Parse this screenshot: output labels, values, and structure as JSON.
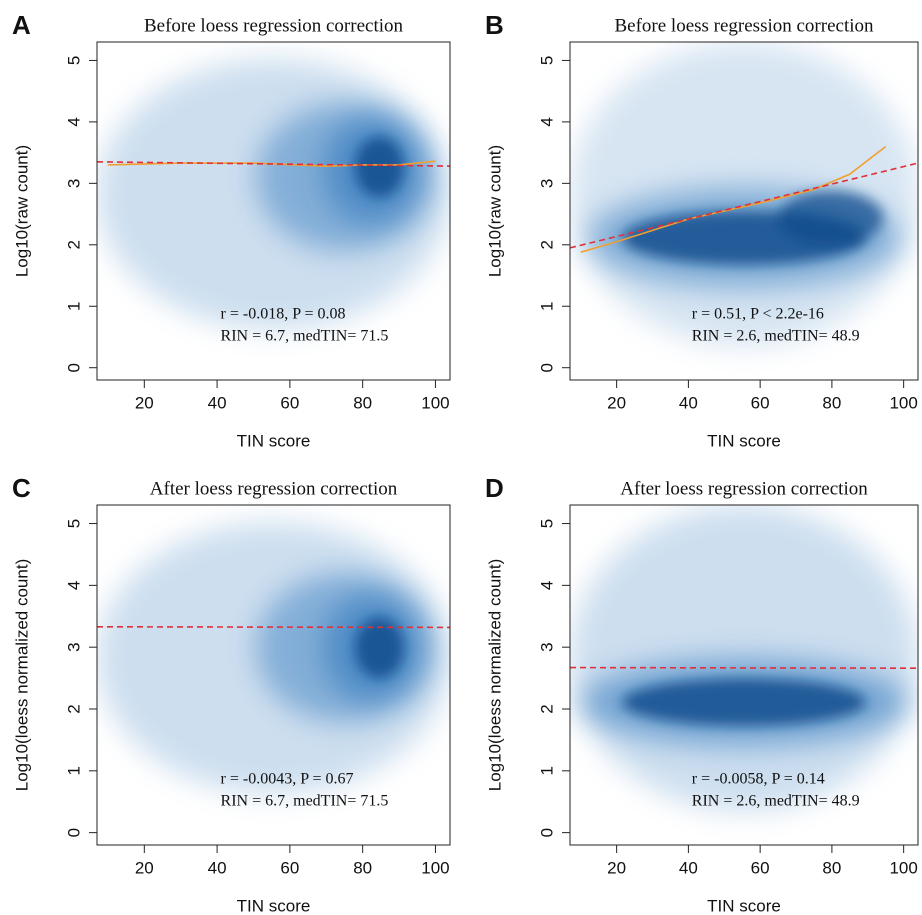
{
  "chart_data": [
    {
      "type": "smoothscatter",
      "panel": "A",
      "title": "Before loess regression correction",
      "xlabel": "TIN score",
      "ylabel": "Log10(raw count)",
      "xlim": [
        7,
        104
      ],
      "ylim": [
        -0.2,
        5.3
      ],
      "xticks": [
        20,
        40,
        60,
        80,
        100
      ],
      "yticks": [
        0,
        1,
        2,
        3,
        4,
        5
      ],
      "annotations": [
        "r = -0.018, P = 0.08",
        "RIN = 6.7, medTIN= 71.5"
      ],
      "fit": {
        "color": "#e0303a",
        "x": [
          7,
          104
        ],
        "y": [
          3.35,
          3.28
        ]
      },
      "loess": {
        "color": "#f0a030",
        "x": [
          10,
          30,
          50,
          70,
          80,
          90,
          100
        ],
        "y": [
          3.3,
          3.33,
          3.33,
          3.28,
          3.3,
          3.3,
          3.36
        ]
      }
    },
    {
      "type": "smoothscatter",
      "panel": "B",
      "title": "Before loess regression correction",
      "xlabel": "TIN score",
      "ylabel": "Log10(raw count)",
      "xlim": [
        7,
        104
      ],
      "ylim": [
        -0.2,
        5.3
      ],
      "xticks": [
        20,
        40,
        60,
        80,
        100
      ],
      "yticks": [
        0,
        1,
        2,
        3,
        4,
        5
      ],
      "annotations": [
        "r = 0.51, P < 2.2e-16",
        "RIN = 2.6, medTIN= 48.9"
      ],
      "fit": {
        "color": "#e0303a",
        "x": [
          7,
          104
        ],
        "y": [
          1.95,
          3.33
        ]
      },
      "loess": {
        "color": "#f0a030",
        "x": [
          10,
          20,
          40,
          60,
          75,
          85,
          95
        ],
        "y": [
          1.88,
          2.05,
          2.42,
          2.68,
          2.9,
          3.15,
          3.6
        ]
      }
    },
    {
      "type": "smoothscatter",
      "panel": "C",
      "title": "After loess regression correction",
      "xlabel": "TIN score",
      "ylabel": "Log10(loess normalized count)",
      "xlim": [
        7,
        104
      ],
      "ylim": [
        -0.2,
        5.3
      ],
      "xticks": [
        20,
        40,
        60,
        80,
        100
      ],
      "yticks": [
        0,
        1,
        2,
        3,
        4,
        5
      ],
      "annotations": [
        "r = -0.0043, P = 0.67",
        "RIN = 6.7, medTIN= 71.5"
      ],
      "fit": {
        "color": "#e0303a",
        "x": [
          7,
          104
        ],
        "y": [
          3.33,
          3.32
        ]
      }
    },
    {
      "type": "smoothscatter",
      "panel": "D",
      "title": "After loess regression correction",
      "xlabel": "TIN score",
      "ylabel": "Log10(loess normalized count)",
      "xlim": [
        7,
        104
      ],
      "ylim": [
        -0.2,
        5.3
      ],
      "xticks": [
        20,
        40,
        60,
        80,
        100
      ],
      "yticks": [
        0,
        1,
        2,
        3,
        4,
        5
      ],
      "annotations": [
        "r = -0.0058, P = 0.14",
        "RIN = 2.6, medTIN= 48.9"
      ],
      "fit": {
        "color": "#e0303a",
        "x": [
          7,
          104
        ],
        "y": [
          2.67,
          2.66
        ]
      }
    }
  ]
}
